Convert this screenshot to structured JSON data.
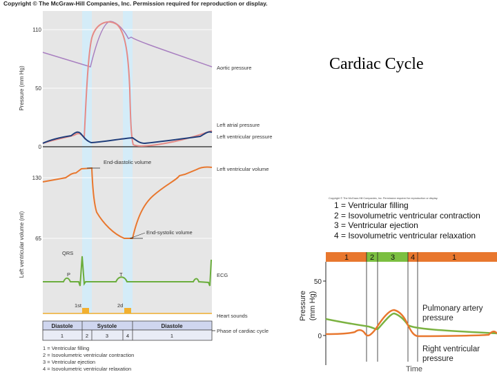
{
  "header": {
    "copyright": "Copyright © The McGraw-Hill Companies, Inc. Permission required for reproduction or display.",
    "slide_title": "Cardiac Cycle"
  },
  "left_figure": {
    "pressure_axis": {
      "label": "Pressure (mm Hg)",
      "ticks": [
        "110",
        "50",
        "0"
      ]
    },
    "volume_axis": {
      "label": "Left ventricular volume (ml)",
      "ticks": [
        "130",
        "65"
      ]
    },
    "labels": {
      "aortic_pressure": "Aortic pressure",
      "left_atrial_pressure": "Left atrial pressure",
      "left_ventricular_pressure": "Left ventricular pressure",
      "left_ventricular_volume": "Left ventricular volume",
      "end_diastolic_volume": "End-diastolic volume",
      "end_systolic_volume": "End-systolic volume",
      "ecg": "ECG",
      "qrs": "QRS",
      "p_wave": "P",
      "t_wave": "T",
      "heart_sounds": "Heart sounds",
      "first_sound": "1st",
      "second_sound": "2d",
      "phase_of_cycle": "Phase of cardiac cycle"
    },
    "phase_table": {
      "headers": [
        "Diastole",
        "Systole",
        "Diastole"
      ],
      "numbers": [
        "1",
        "2",
        "3",
        "4",
        "1"
      ]
    },
    "phase_legend": [
      "1 = Ventricular filling",
      "2 = Isovolumetric ventricular contraction",
      "3 = Ventricular ejection",
      "4 = Isovolumetric ventricular relaxation"
    ],
    "colors": {
      "aortic": "#a87fc0",
      "atrial": "#1f3d7a",
      "ventricular_pressure": "#e58a86",
      "volume": "#e8772e",
      "ecg": "#6aad3c",
      "heart_sounds": "#f2b030",
      "panel": "#e6e6e6",
      "highlight": "#d4ecf8"
    }
  },
  "right_figure": {
    "small_copyright": "Copyright © The McGraw-Hill Companies, Inc. Permission required for reproduction or display.",
    "phase_legend": [
      "1 = Ventricular filling",
      "2 = Isovolumetric ventricular contraction",
      "3 = Ventricular ejection",
      "4 = Isovolumetric ventricular relaxation"
    ],
    "phase_bar": [
      "1",
      "2",
      "3",
      "4",
      "1"
    ],
    "y_axis": {
      "label_line1": "Pressure",
      "label_line2": "(mm Hg)",
      "ticks": [
        "50",
        "0"
      ]
    },
    "curve_labels": {
      "pulmonary_line1": "Pulmonary artery",
      "pulmonary_line2": "pressure",
      "rv_line1": "Right ventricular",
      "rv_line2": "pressure"
    },
    "x_label": "Time",
    "colors": {
      "pulmonary": "#7bb241",
      "right_ventricular": "#e8772e",
      "phase_orange": "#e8772e",
      "phase_green": "#7bbf40"
    }
  }
}
